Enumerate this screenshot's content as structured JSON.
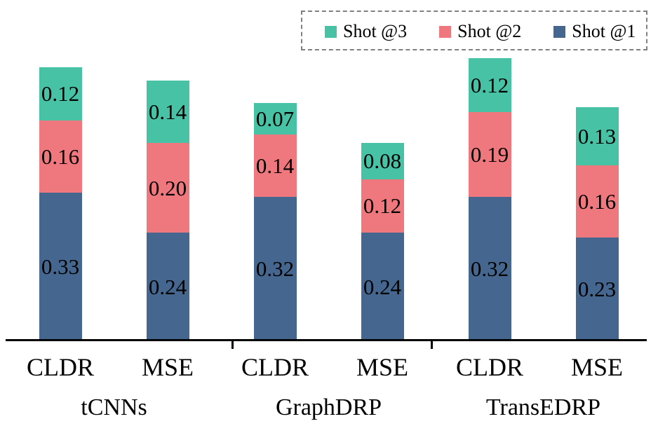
{
  "colors": {
    "shot1": "#45678F",
    "shot2": "#EF787E",
    "shot3": "#47C2A5",
    "axis": "#000000",
    "legend_border": "#808080",
    "text": "#000000",
    "background": "#ffffff"
  },
  "legend": {
    "items": [
      {
        "label": "Shot @3",
        "color_key": "shot3"
      },
      {
        "label": "Shot @2",
        "color_key": "shot2"
      },
      {
        "label": "Shot @1",
        "color_key": "shot1"
      }
    ]
  },
  "chart_data": {
    "type": "bar",
    "stacked": true,
    "legend_position": "top-right",
    "grid": false,
    "y_axis_visible": false,
    "series_keys_bottom_to_top": [
      "shot1",
      "shot2",
      "shot3"
    ],
    "series_names": {
      "shot1": "Shot @1",
      "shot2": "Shot @2",
      "shot3": "Shot @3"
    },
    "value_label_decimals": 2,
    "groups": [
      {
        "label": "tCNNs",
        "bars": [
          {
            "label": "CLDR",
            "values": {
              "shot1": 0.33,
              "shot2": 0.16,
              "shot3": 0.12
            }
          },
          {
            "label": "MSE",
            "values": {
              "shot1": 0.24,
              "shot2": 0.2,
              "shot3": 0.14
            }
          }
        ]
      },
      {
        "label": "GraphDRP",
        "bars": [
          {
            "label": "CLDR",
            "values": {
              "shot1": 0.32,
              "shot2": 0.14,
              "shot3": 0.07
            }
          },
          {
            "label": "MSE",
            "values": {
              "shot1": 0.24,
              "shot2": 0.12,
              "shot3": 0.08
            }
          }
        ]
      },
      {
        "label": "TransEDRP",
        "bars": [
          {
            "label": "CLDR",
            "values": {
              "shot1": 0.32,
              "shot2": 0.19,
              "shot3": 0.12
            }
          },
          {
            "label": "MSE",
            "values": {
              "shot1": 0.23,
              "shot2": 0.16,
              "shot3": 0.13
            }
          }
        ]
      }
    ]
  }
}
